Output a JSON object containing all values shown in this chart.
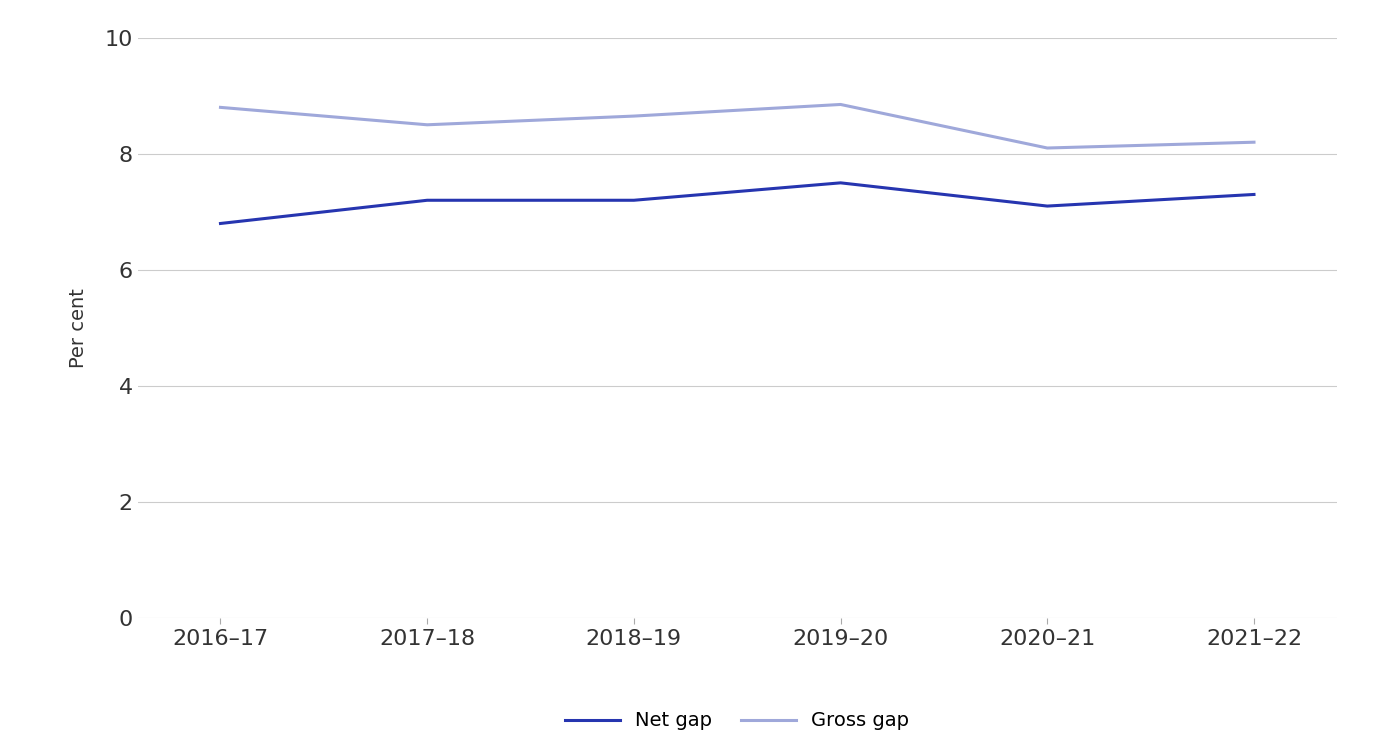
{
  "categories": [
    "2016–17",
    "2017–18",
    "2018–19",
    "2019–20",
    "2020–21",
    "2021–22"
  ],
  "net_gap": [
    6.8,
    7.2,
    7.2,
    7.5,
    7.1,
    7.3
  ],
  "gross_gap": [
    8.8,
    8.5,
    8.65,
    8.85,
    8.1,
    8.2
  ],
  "net_gap_label": "Net gap",
  "gross_gap_label": "Gross gap",
  "net_gap_color": "#2635b0",
  "gross_gap_color": "#9fa8da",
  "ylabel": "Per cent",
  "ylim": [
    0,
    10
  ],
  "yticks": [
    0,
    2,
    4,
    6,
    8,
    10
  ],
  "line_width": 2.2,
  "background_color": "#ffffff",
  "grid_color": "#cccccc",
  "legend_fontsize": 14,
  "axis_fontsize": 14,
  "tick_fontsize": 16,
  "ylabel_fontsize": 14
}
